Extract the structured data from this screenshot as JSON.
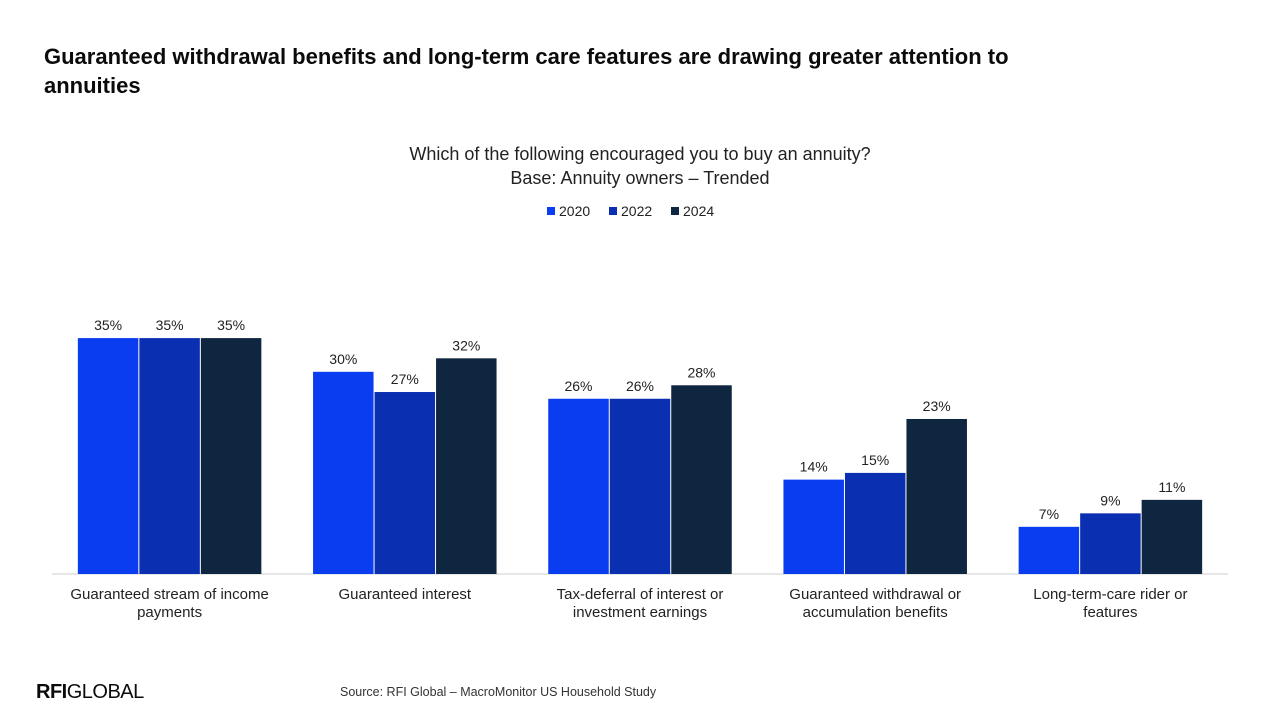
{
  "chart_data": {
    "type": "bar",
    "title": "Guaranteed withdrawal benefits and long-term care features are drawing greater attention to annuities",
    "subtitle": [
      "Which of the following encouraged you to buy an annuity?",
      "Base: Annuity owners – Trended"
    ],
    "categories": [
      "Guaranteed stream of income payments",
      "Guaranteed interest",
      "Tax-deferral of interest or investment earnings",
      "Guaranteed withdrawal or accumulation benefits",
      "Long-term-care rider or features"
    ],
    "series": [
      {
        "name": "2020",
        "color": "#0a3cf0",
        "values": [
          35,
          30,
          26,
          14,
          7
        ],
        "value_labels": [
          "35%",
          "30%",
          "26%",
          "14%",
          "7%"
        ]
      },
      {
        "name": "2022",
        "color": "#0a2fb0",
        "values": [
          35,
          27,
          26,
          15,
          9
        ],
        "value_labels": [
          "35%",
          "27%",
          "26%",
          "15%",
          "9%"
        ]
      },
      {
        "name": "2024",
        "color": "#0e2640",
        "values": [
          35,
          32,
          28,
          23,
          11
        ],
        "value_labels": [
          "35%",
          "32%",
          "28%",
          "23%",
          "11%"
        ]
      }
    ],
    "legend": "top",
    "source": "Source: RFI Global – MacroMonitor US Household Study",
    "brand": {
      "bold": "RFI",
      "rest": "GLOBAL"
    }
  }
}
